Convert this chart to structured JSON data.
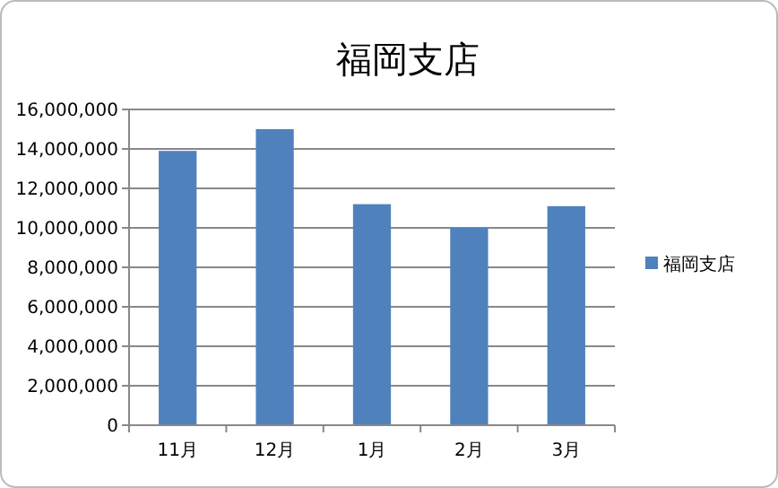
{
  "chart_data": {
    "type": "bar",
    "title": "福岡支店",
    "categories": [
      "11月",
      "12月",
      "1月",
      "2月",
      "3月"
    ],
    "series": [
      {
        "name": "福岡支店",
        "color": "#4f81bd",
        "values": [
          13900000,
          15000000,
          11200000,
          10000000,
          11100000
        ]
      }
    ],
    "ylim": [
      0,
      16000000
    ],
    "yticks": [
      {
        "value": 0,
        "label": "0"
      },
      {
        "value": 2000000,
        "label": "2,000,000"
      },
      {
        "value": 4000000,
        "label": "4,000,000"
      },
      {
        "value": 6000000,
        "label": "6,000,000"
      },
      {
        "value": 8000000,
        "label": "8,000,000"
      },
      {
        "value": 10000000,
        "label": "10,000,000"
      },
      {
        "value": 12000000,
        "label": "12,000,000"
      },
      {
        "value": 14000000,
        "label": "14,000,000"
      },
      {
        "value": 16000000,
        "label": "16,000,000"
      }
    ],
    "grid": "y",
    "legend": "right"
  }
}
